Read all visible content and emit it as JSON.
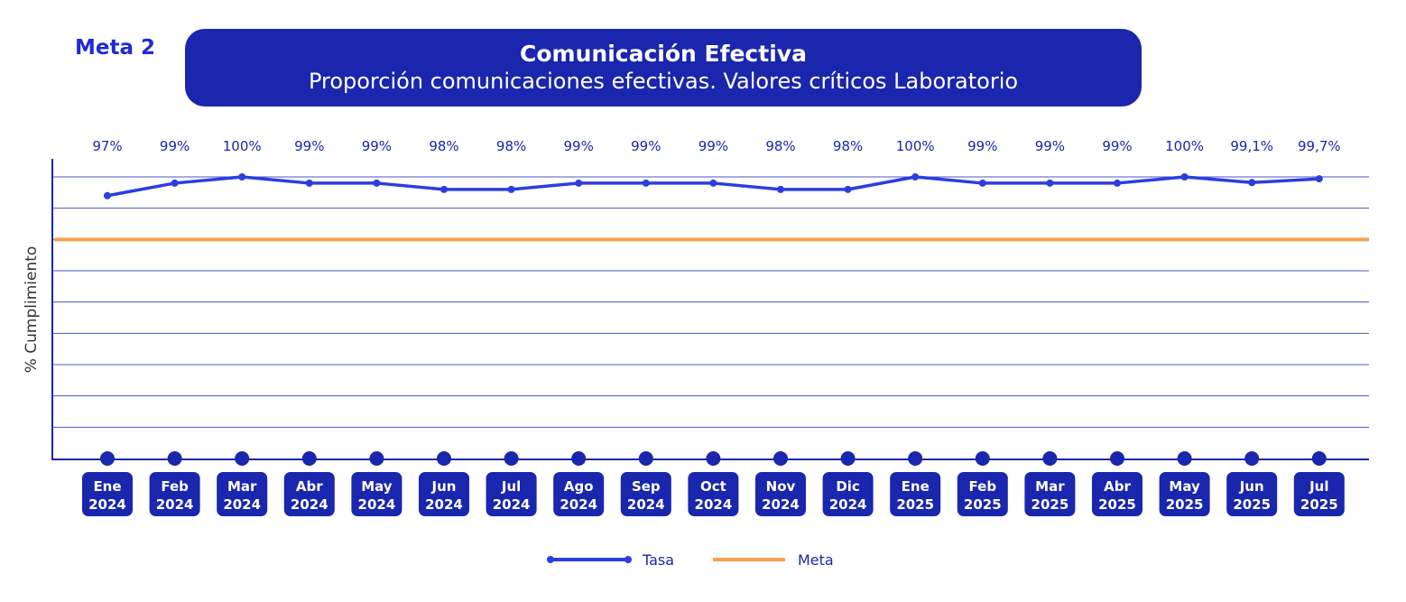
{
  "header": {
    "meta_tag": "Meta 2",
    "title": "Comunicación Efectiva",
    "subtitle": "Proporción comunicaciones efectivas. Valores críticos Laboratorio"
  },
  "colors": {
    "brand": "#1a26ad",
    "series_tasa": "#2a3ee0",
    "series_meta": "#f5a055",
    "grid": "#4b54c8"
  },
  "chart_data": {
    "type": "line",
    "title": "Comunicación Efectiva",
    "subtitle": "Proporción comunicaciones efectivas. Valores críticos Laboratorio",
    "ylabel": "% Cumplimiento",
    "xlabel": "",
    "categories": [
      [
        "Ene",
        "2024"
      ],
      [
        "Feb",
        "2024"
      ],
      [
        "Mar",
        "2024"
      ],
      [
        "Abr",
        "2024"
      ],
      [
        "May",
        "2024"
      ],
      [
        "Jun",
        "2024"
      ],
      [
        "Jul",
        "2024"
      ],
      [
        "Ago",
        "2024"
      ],
      [
        "Sep",
        "2024"
      ],
      [
        "Oct",
        "2024"
      ],
      [
        "Nov",
        "2024"
      ],
      [
        "Dic",
        "2024"
      ],
      [
        "Ene",
        "2025"
      ],
      [
        "Feb",
        "2025"
      ],
      [
        "Mar",
        "2025"
      ],
      [
        "Abr",
        "2025"
      ],
      [
        "May",
        "2025"
      ],
      [
        "Jun",
        "2025"
      ],
      [
        "Jul",
        "2025"
      ]
    ],
    "series": [
      {
        "name": "Tasa",
        "values": [
          97,
          99,
          100,
          99,
          99,
          98,
          98,
          99,
          99,
          99,
          98,
          98,
          100,
          99,
          99,
          99,
          100,
          99.1,
          99.7
        ],
        "labels": [
          "97%",
          "99%",
          "100%",
          "99%",
          "99%",
          "98%",
          "98%",
          "99%",
          "99%",
          "99%",
          "98%",
          "98%",
          "100%",
          "99%",
          "99%",
          "99%",
          "100%",
          "99,1%",
          "99,7%"
        ]
      },
      {
        "name": "Meta",
        "values": [
          90,
          90,
          90,
          90,
          90,
          90,
          90,
          90,
          90,
          90,
          90,
          90,
          90,
          90,
          90,
          90,
          90,
          90,
          90
        ]
      }
    ],
    "ylim": [
      55,
      100
    ],
    "grid": true,
    "legend": "bottom-center"
  }
}
